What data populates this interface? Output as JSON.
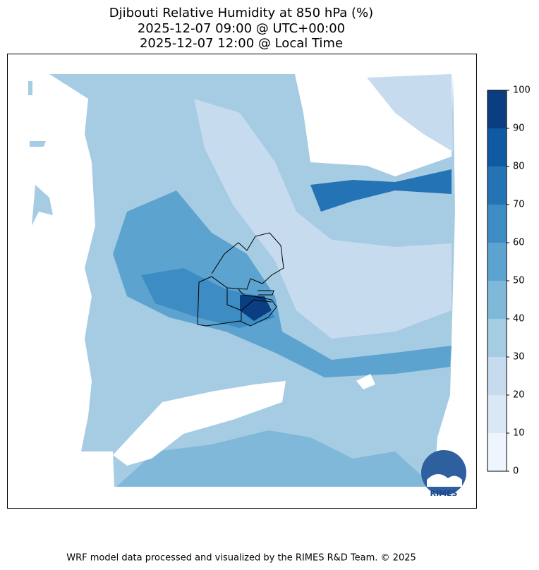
{
  "title": [
    "Djibouti Relative Humidity at 850 hPa (%)",
    "2025-12-07 09:00 @ UTC+00:00",
    "2025-12-07 12:00 @ Local Time"
  ],
  "colorbar": {
    "ticks": [
      0,
      10,
      20,
      30,
      40,
      50,
      60,
      70,
      80,
      90,
      100
    ],
    "colors": [
      "#eef5fc",
      "#dae8f5",
      "#c7dbef",
      "#a5cce3",
      "#80b8da",
      "#5ca3d0",
      "#3d8cc3",
      "#2473b5",
      "#1059a3",
      "#0a3e80"
    ]
  },
  "logo": "RIMES",
  "footer": "WRF model data processed and visualized by the RIMES R&D Team. © 2025"
}
